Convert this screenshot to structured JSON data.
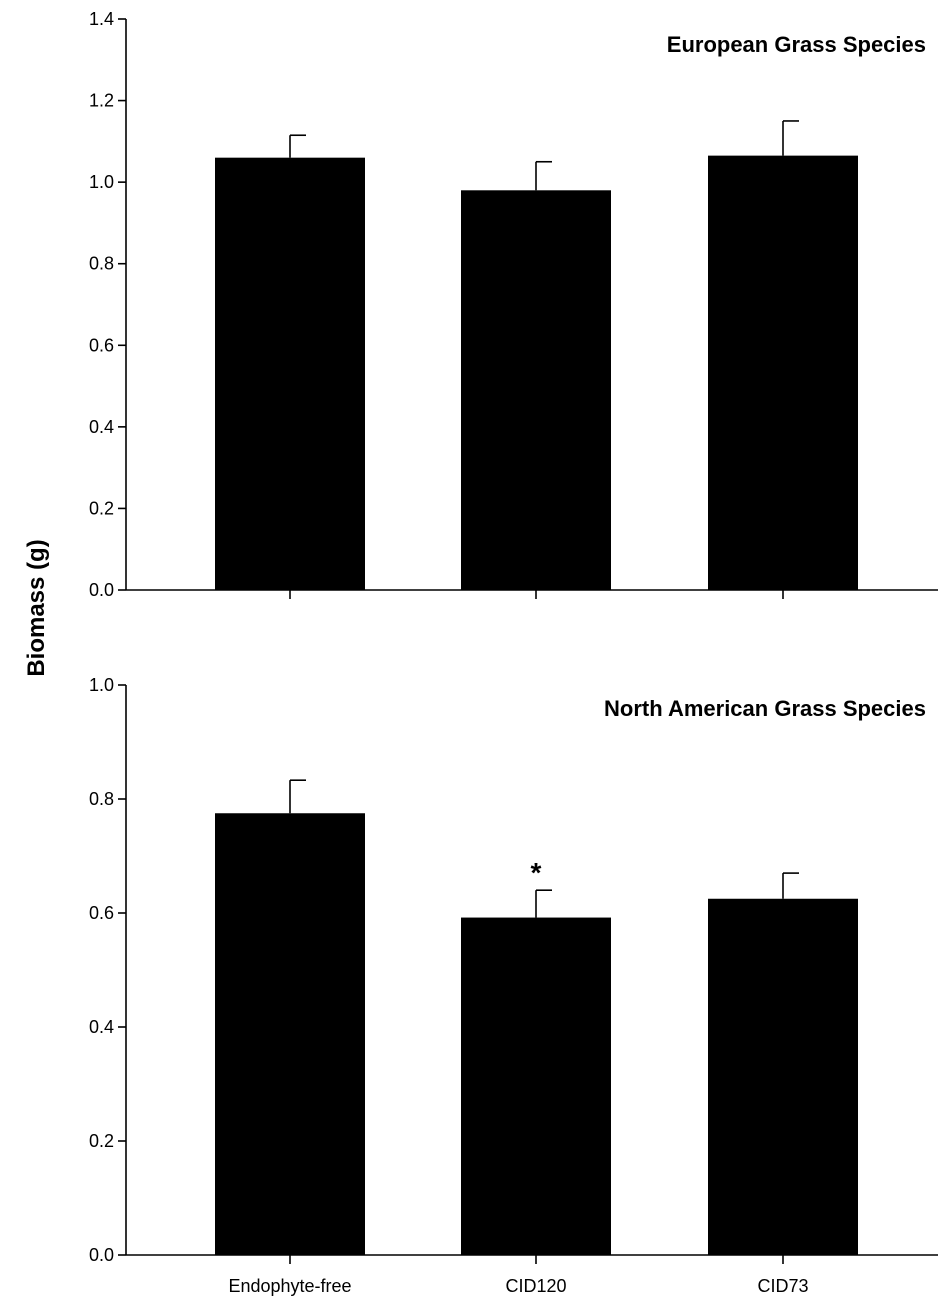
{
  "chart_data": [
    {
      "type": "bar",
      "title": "European Grass Species",
      "ylabel": "Biomass (g)",
      "ylim": [
        0,
        1.4
      ],
      "yticks": [
        "0.0",
        "0.2",
        "0.4",
        "0.6",
        "0.8",
        "1.0",
        "1.2",
        "1.4"
      ],
      "categories": [
        "Endophyte-free",
        "CID120",
        "CID73"
      ],
      "show_category_labels": false,
      "values": [
        1.06,
        0.98,
        1.065
      ],
      "errors": [
        0.055,
        0.07,
        0.085
      ],
      "annotations": [
        "",
        "",
        ""
      ],
      "grid": false,
      "bar_color": "#000000"
    },
    {
      "type": "bar",
      "title": "North American Grass Species",
      "ylabel": "Biomass (g)",
      "ylim": [
        0,
        1.0
      ],
      "yticks": [
        "0.0",
        "0.2",
        "0.4",
        "0.6",
        "0.8",
        "1.0"
      ],
      "categories": [
        "Endophyte-free",
        "CID120",
        "CID73"
      ],
      "show_category_labels": true,
      "values": [
        0.775,
        0.592,
        0.625
      ],
      "errors": [
        0.058,
        0.048,
        0.045
      ],
      "annotations": [
        "",
        "*",
        ""
      ],
      "grid": false,
      "bar_color": "#000000"
    }
  ],
  "y_axis_title": "Biomass (g)"
}
